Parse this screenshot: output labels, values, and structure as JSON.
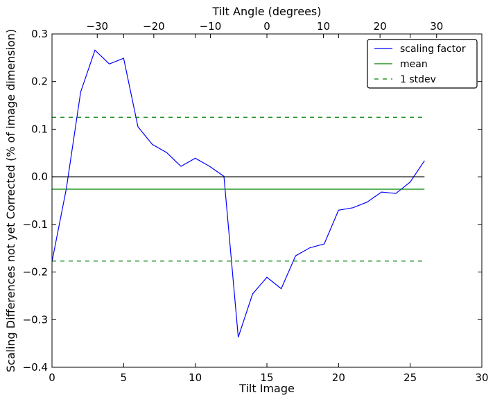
{
  "chart_data": {
    "type": "line",
    "title": "",
    "xlabel": "Tilt Image",
    "ylabel": "Scaling Differences not yet Corrected (% of image dimension)",
    "top_xlabel": "Tilt Angle (degrees)",
    "xlim": [
      0,
      30
    ],
    "ylim": [
      -0.4,
      0.3
    ],
    "top_xlim": [
      -38,
      38
    ],
    "x_ticks": [
      0,
      5,
      10,
      15,
      20,
      25,
      30
    ],
    "x_tick_labels": [
      "0",
      "5",
      "10",
      "15",
      "20",
      "25",
      "30"
    ],
    "y_ticks": [
      0.3,
      0.2,
      0.1,
      0.0,
      -0.1,
      -0.2,
      -0.3,
      -0.4
    ],
    "y_tick_labels": [
      "0.3",
      "0.2",
      "0.1",
      "0.0",
      "−0.1",
      "−0.2",
      "−0.3",
      "−0.4"
    ],
    "top_ticks": [
      -30,
      -20,
      -10,
      0,
      10,
      20,
      30
    ],
    "top_tick_labels": [
      "−30",
      "−20",
      "−10",
      "0",
      "10",
      "20",
      "30"
    ],
    "grid": false,
    "legend_position": "top-right",
    "series": [
      {
        "name": "scaling factor",
        "color": "#0000ff",
        "style": "solid",
        "x": [
          0,
          1,
          2,
          3,
          4,
          5,
          6,
          7,
          8,
          9,
          10,
          11,
          12,
          13,
          14,
          15,
          16,
          17,
          18,
          19,
          20,
          21,
          22,
          23,
          24,
          25,
          26
        ],
        "y": [
          -0.178,
          -0.025,
          0.178,
          0.266,
          0.237,
          0.249,
          0.105,
          0.068,
          0.051,
          0.022,
          0.039,
          0.022,
          0.001,
          -0.337,
          -0.246,
          -0.211,
          -0.235,
          -0.166,
          -0.149,
          -0.141,
          -0.07,
          -0.065,
          -0.053,
          -0.032,
          -0.035,
          -0.011,
          0.034
        ]
      },
      {
        "name": "mean",
        "color": "#008000",
        "style": "solid",
        "x": [
          0,
          26
        ],
        "y": [
          -0.026,
          -0.026
        ]
      },
      {
        "name": "1 stdev",
        "color": "#008000",
        "style": "dashed",
        "x": [
          0,
          26
        ],
        "y": [
          0.125,
          0.125
        ]
      },
      {
        "name": "",
        "color": "#008000",
        "style": "dashed",
        "x": [
          0,
          26
        ],
        "y": [
          -0.177,
          -0.177
        ]
      },
      {
        "name": "",
        "color": "#000000",
        "style": "solid",
        "x": [
          0,
          26
        ],
        "y": [
          0.0,
          0.0
        ]
      }
    ],
    "legend": [
      {
        "label": "scaling factor",
        "color": "#0000ff",
        "style": "solid"
      },
      {
        "label": "mean",
        "color": "#008000",
        "style": "solid"
      },
      {
        "label": "1 stdev",
        "color": "#008000",
        "style": "dashed"
      }
    ]
  }
}
